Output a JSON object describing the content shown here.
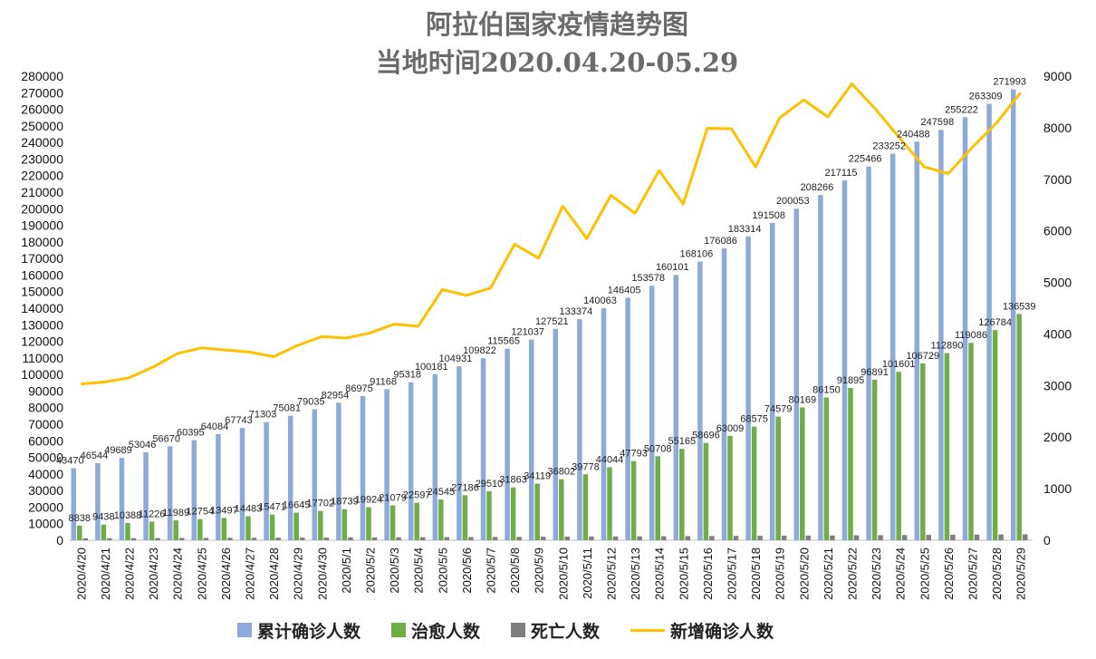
{
  "chart_data": {
    "type": "bar",
    "title": "阿拉伯国家疫情趋势图",
    "subtitle": "当地时间2020.04.20-05.29",
    "categories": [
      "2020/4/20",
      "2020/4/21",
      "2020/4/22",
      "2020/4/23",
      "2020/4/24",
      "2020/4/25",
      "2020/4/26",
      "2020/4/27",
      "2020/4/28",
      "2020/4/29",
      "2020/4/30",
      "2020/5/1",
      "2020/5/2",
      "2020/5/3",
      "2020/5/4",
      "2020/5/5",
      "2020/5/6",
      "2020/5/7",
      "2020/5/8",
      "2020/5/9",
      "2020/5/10",
      "2020/5/11",
      "2020/5/12",
      "2020/5/13",
      "2020/5/14",
      "2020/5/15",
      "2020/5/16",
      "2020/5/17",
      "2020/5/18",
      "2020/5/19",
      "2020/5/20",
      "2020/5/21",
      "2020/5/22",
      "2020/5/23",
      "2020/5/24",
      "2020/5/25",
      "2020/5/26",
      "2020/5/27",
      "2020/5/28",
      "2020/5/29"
    ],
    "ylim": [
      0,
      280000
    ],
    "ylim_right": [
      0,
      9000
    ],
    "y_ticks": [
      0,
      10000,
      20000,
      30000,
      40000,
      50000,
      60000,
      70000,
      80000,
      90000,
      100000,
      110000,
      120000,
      130000,
      140000,
      150000,
      160000,
      170000,
      180000,
      190000,
      200000,
      210000,
      220000,
      230000,
      240000,
      250000,
      260000,
      270000,
      280000
    ],
    "y2_ticks": [
      0,
      1000,
      2000,
      3000,
      4000,
      5000,
      6000,
      7000,
      8000,
      9000
    ],
    "grid": false,
    "legend_position": "bottom",
    "series": [
      {
        "name": "累计确诊人数",
        "type": "bar",
        "axis": "left",
        "color": "#8eaadb",
        "values": [
          43470,
          46544,
          49689,
          53046,
          56670,
          60395,
          64084,
          67743,
          71303,
          75081,
          79035,
          82954,
          86975,
          91168,
          95318,
          100181,
          104931,
          109822,
          115565,
          121037,
          127521,
          133374,
          140063,
          146405,
          153578,
          160101,
          168106,
          176086,
          183314,
          191508,
          200053,
          208266,
          217115,
          225466,
          233252,
          240488,
          247598,
          255222,
          263309,
          271993
        ],
        "labels_shown": true
      },
      {
        "name": "治愈人数",
        "type": "bar",
        "axis": "left",
        "color": "#70ad47",
        "values": [
          8838,
          9438,
          10388,
          11226,
          11989,
          12754,
          13497,
          14483,
          15471,
          16645,
          17702,
          18739,
          19924,
          21079,
          22597,
          24545,
          27186,
          29510,
          31863,
          34119,
          36802,
          39778,
          44044,
          47793,
          50708,
          55165,
          58696,
          63009,
          68575,
          74579,
          80169,
          86150,
          91895,
          96891,
          101601,
          106729,
          112890,
          119086,
          126784,
          136539
        ],
        "labels_shown": true
      },
      {
        "name": "死亡人数",
        "type": "bar",
        "axis": "left",
        "color": "#7f7f7f",
        "values": [
          1180,
          1230,
          1280,
          1330,
          1380,
          1430,
          1470,
          1510,
          1560,
          1610,
          1660,
          1710,
          1760,
          1810,
          1860,
          1910,
          1960,
          2020,
          2080,
          2140,
          2200,
          2260,
          2320,
          2380,
          2440,
          2500,
          2560,
          2620,
          2690,
          2760,
          2830,
          2900,
          2980,
          3060,
          3140,
          3220,
          3310,
          3400,
          3490,
          3580
        ],
        "labels_shown": false
      },
      {
        "name": "新增确诊人数",
        "type": "line",
        "axis": "right",
        "color": "#ffc000",
        "values": [
          3030,
          3070,
          3150,
          3360,
          3620,
          3730,
          3690,
          3650,
          3560,
          3780,
          3950,
          3920,
          4020,
          4190,
          4150,
          4860,
          4750,
          4890,
          5740,
          5470,
          6480,
          5850,
          6690,
          6340,
          7170,
          6520,
          7990,
          7980,
          7240,
          8190,
          8540,
          8210,
          8850,
          8350,
          7790,
          7240,
          7110,
          7620,
          8090,
          8680
        ]
      }
    ]
  }
}
